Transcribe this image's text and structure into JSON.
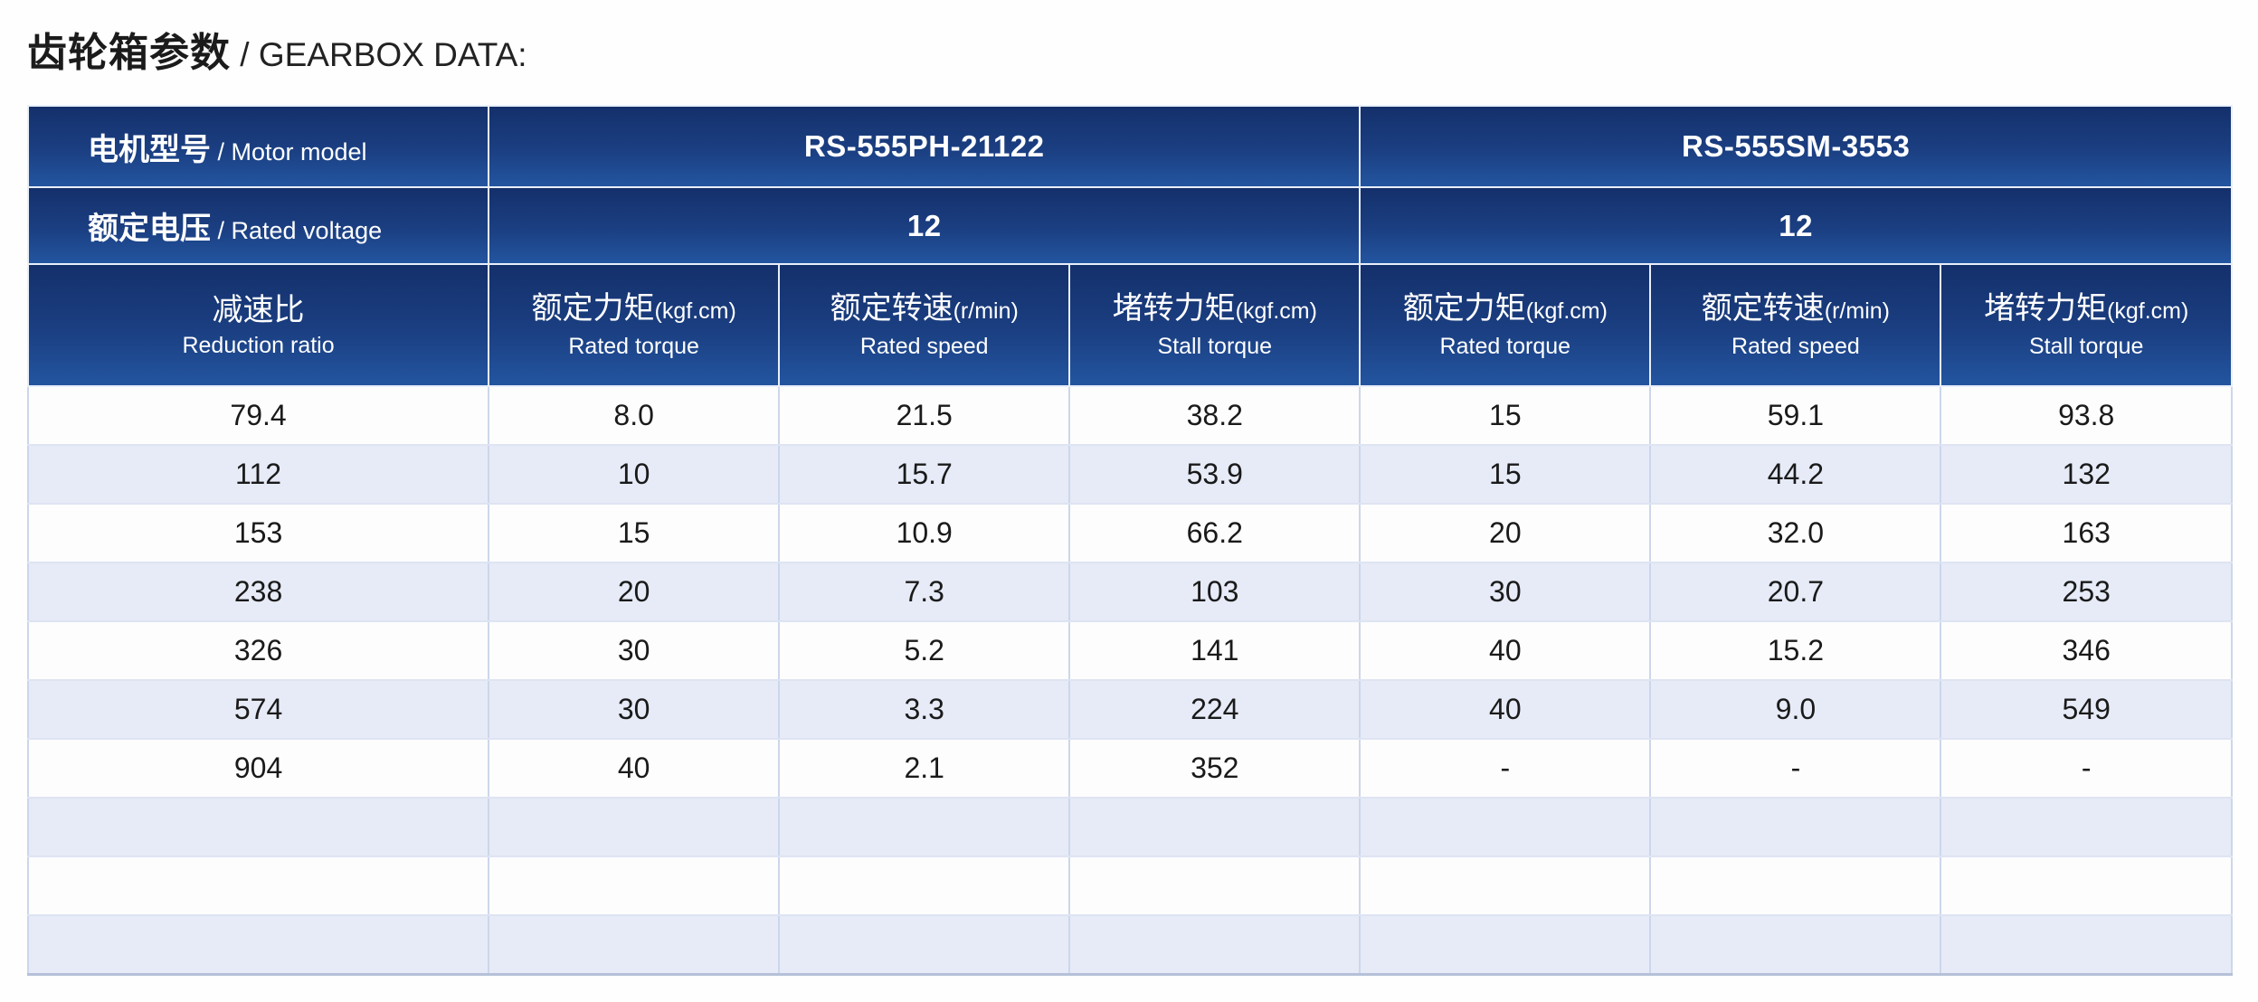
{
  "page_title": {
    "zh": "齿轮箱参数",
    "en": " / GEARBOX DATA:"
  },
  "table": {
    "row_labels": {
      "motor_model_zh": "电机型号",
      "motor_model_en": " / Motor model",
      "rated_voltage_zh": "额定电压",
      "rated_voltage_en": " / Rated voltage"
    },
    "motors": [
      {
        "model": "RS-555PH-21122",
        "voltage": "12"
      },
      {
        "model": "RS-555SM-3553",
        "voltage": "12"
      }
    ],
    "reduction_header": {
      "zh": "减速比",
      "en": "Reduction ratio"
    },
    "column_headers": [
      {
        "zh": "额定力矩",
        "unit": "(kgf.cm)",
        "en": "Rated torque"
      },
      {
        "zh": "额定转速",
        "unit": "(r/min)",
        "en": "Rated speed"
      },
      {
        "zh": "堵转力矩",
        "unit": "(kgf.cm)",
        "en": "Stall torque"
      }
    ],
    "rows": [
      [
        "79.4",
        "8.0",
        "21.5",
        "38.2",
        "15",
        "59.1",
        "93.8"
      ],
      [
        "112",
        "10",
        "15.7",
        "53.9",
        "15",
        "44.2",
        "132"
      ],
      [
        "153",
        "15",
        "10.9",
        "66.2",
        "20",
        "32.0",
        "163"
      ],
      [
        "238",
        "20",
        "7.3",
        "103",
        "30",
        "20.7",
        "253"
      ],
      [
        "326",
        "30",
        "5.2",
        "141",
        "40",
        "15.2",
        "346"
      ],
      [
        "574",
        "30",
        "3.3",
        "224",
        "40",
        "9.0",
        "549"
      ],
      [
        "904",
        "40",
        "2.1",
        "352",
        "-",
        "-",
        "-"
      ],
      [
        "",
        "",
        "",
        "",
        "",
        "",
        ""
      ],
      [
        "",
        "",
        "",
        "",
        "",
        "",
        ""
      ],
      [
        "",
        "",
        "",
        "",
        "",
        "",
        ""
      ]
    ]
  },
  "colors": {
    "header_gradient_top": "#14306b",
    "header_gradient_bottom": "#2355a0",
    "stripe_row": "#e6ebf7",
    "grid_line": "#ccd7eb",
    "header_text": "#ffffff",
    "body_text": "#1a1a1a"
  }
}
